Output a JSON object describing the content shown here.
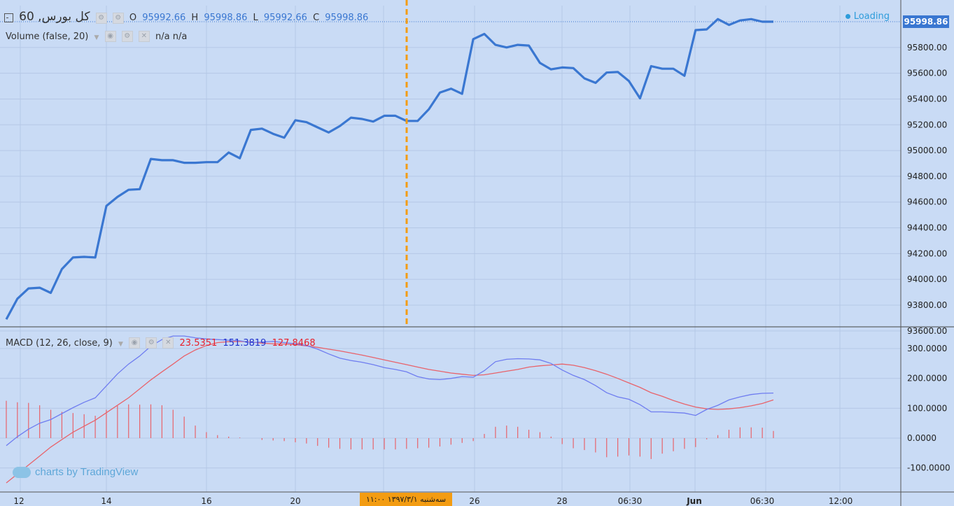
{
  "header": {
    "symbol": "کل بورس, 60",
    "o_label": "O",
    "o_value": "95992.66",
    "h_label": "H",
    "h_value": "95998.86",
    "l_label": "L",
    "l_value": "95992.66",
    "c_label": "C",
    "c_value": "95998.86",
    "volume_label": "Volume (false, 20)",
    "volume_values": "n/a n/a",
    "loading": "Loading"
  },
  "last_price_badge": "95998.86",
  "macd": {
    "label": "MACD (12, 26, close, 9)",
    "histogram_value": "23.5351",
    "macd_value": "151.3819",
    "signal_value": "127.8468"
  },
  "crosshair_date": "سه‌شنبه ۱۳۹۷/۳/۱ ۱۱:۰۰",
  "branding": "charts by TradingView",
  "colors": {
    "price_line": "#3a77d1",
    "macd_line": "#6f7df0",
    "signal_line": "#e8636b",
    "histogram": "#e8636b",
    "crosshair": "#f39c12",
    "background": "#c9dbf5"
  },
  "chart_data": [
    {
      "type": "line",
      "title": "",
      "series": [
        {
          "name": "",
          "values": [
            93690,
            93850,
            93930,
            93935,
            93895,
            94080,
            94170,
            94175,
            94170,
            94570,
            94640,
            94695,
            94700,
            94935,
            94925,
            94925,
            94905,
            94905,
            94910,
            94910,
            94985,
            94940,
            95160,
            95170,
            95130,
            95100,
            95235,
            95220,
            95180,
            95140,
            95190,
            95255,
            95245,
            95225,
            95270,
            95270,
            95230,
            95230,
            95320,
            95450,
            95480,
            95440,
            95865,
            95905,
            95820,
            95800,
            95820,
            95815,
            95680,
            95630,
            95645,
            95640,
            95560,
            95525,
            95605,
            95610,
            95540,
            95405,
            95655,
            95635,
            95635,
            95580,
            95935,
            95940,
            96020,
            95975,
            96010,
            96020,
            96000,
            96000
          ]
        }
      ],
      "ylim": [
        93550,
        96080
      ],
      "yticks": [
        "93600.00",
        "93800.00",
        "94000.00",
        "94200.00",
        "94400.00",
        "94600.00",
        "94800.00",
        "95000.00",
        "95200.00",
        "95400.00",
        "95600.00",
        "95800.00"
      ]
    },
    {
      "type": "line",
      "title": "",
      "series": [
        {
          "name": "MACD",
          "values": [
            -25,
            5,
            30,
            50,
            62,
            82,
            102,
            120,
            135,
            175,
            215,
            248,
            275,
            308,
            330,
            342,
            342,
            336,
            332,
            330,
            328,
            326,
            320,
            322,
            324,
            320,
            316,
            310,
            298,
            282,
            268,
            260,
            254,
            246,
            236,
            230,
            222,
            206,
            198,
            196,
            200,
            206,
            204,
            226,
            256,
            264,
            266,
            265,
            262,
            250,
            228,
            210,
            196,
            176,
            152,
            138,
            130,
            112,
            88,
            88,
            86,
            84,
            76,
            96,
            110,
            128,
            138,
            146,
            150,
            151
          ]
        },
        {
          "name": "Signal",
          "values": [
            -150,
            -120,
            -90,
            -60,
            -30,
            -5,
            20,
            40,
            60,
            85,
            110,
            135,
            165,
            195,
            222,
            248,
            275,
            295,
            310,
            320,
            323,
            324,
            322,
            318,
            316,
            315,
            313,
            309,
            304,
            298,
            292,
            285,
            278,
            270,
            262,
            254,
            246,
            238,
            230,
            224,
            218,
            214,
            210,
            212,
            218,
            224,
            230,
            238,
            242,
            245,
            248,
            244,
            236,
            226,
            214,
            200,
            185,
            170,
            152,
            140,
            126,
            114,
            104,
            98,
            96,
            98,
            102,
            108,
            116,
            128
          ]
        },
        {
          "name": "Histogram",
          "values": [
            125,
            120,
            118,
            110,
            95,
            88,
            84,
            80,
            75,
            95,
            108,
            113,
            112,
            113,
            110,
            95,
            72,
            42,
            20,
            10,
            5,
            2,
            0,
            -6,
            -8,
            -10,
            -14,
            -18,
            -26,
            -32,
            -36,
            -38,
            -38,
            -38,
            -38,
            -38,
            -36,
            -34,
            -32,
            -28,
            -22,
            -16,
            -10,
            14,
            38,
            42,
            38,
            28,
            20,
            5,
            -20,
            -34,
            -40,
            -48,
            -64,
            -62,
            -58,
            -62,
            -70,
            -52,
            -44,
            -36,
            -30,
            -4,
            10,
            28,
            36,
            36,
            35,
            24
          ]
        }
      ],
      "ylim": [
        -162,
        350
      ],
      "yticks": [
        "-100.0000",
        "0.0000",
        "100.0000",
        "200.0000",
        "300.0000"
      ]
    }
  ],
  "x_axis": {
    "ticks": [
      "12",
      "14",
      "16",
      "20",
      "26",
      "28",
      "06:30",
      "Jun",
      "06:30",
      "12:00"
    ]
  }
}
